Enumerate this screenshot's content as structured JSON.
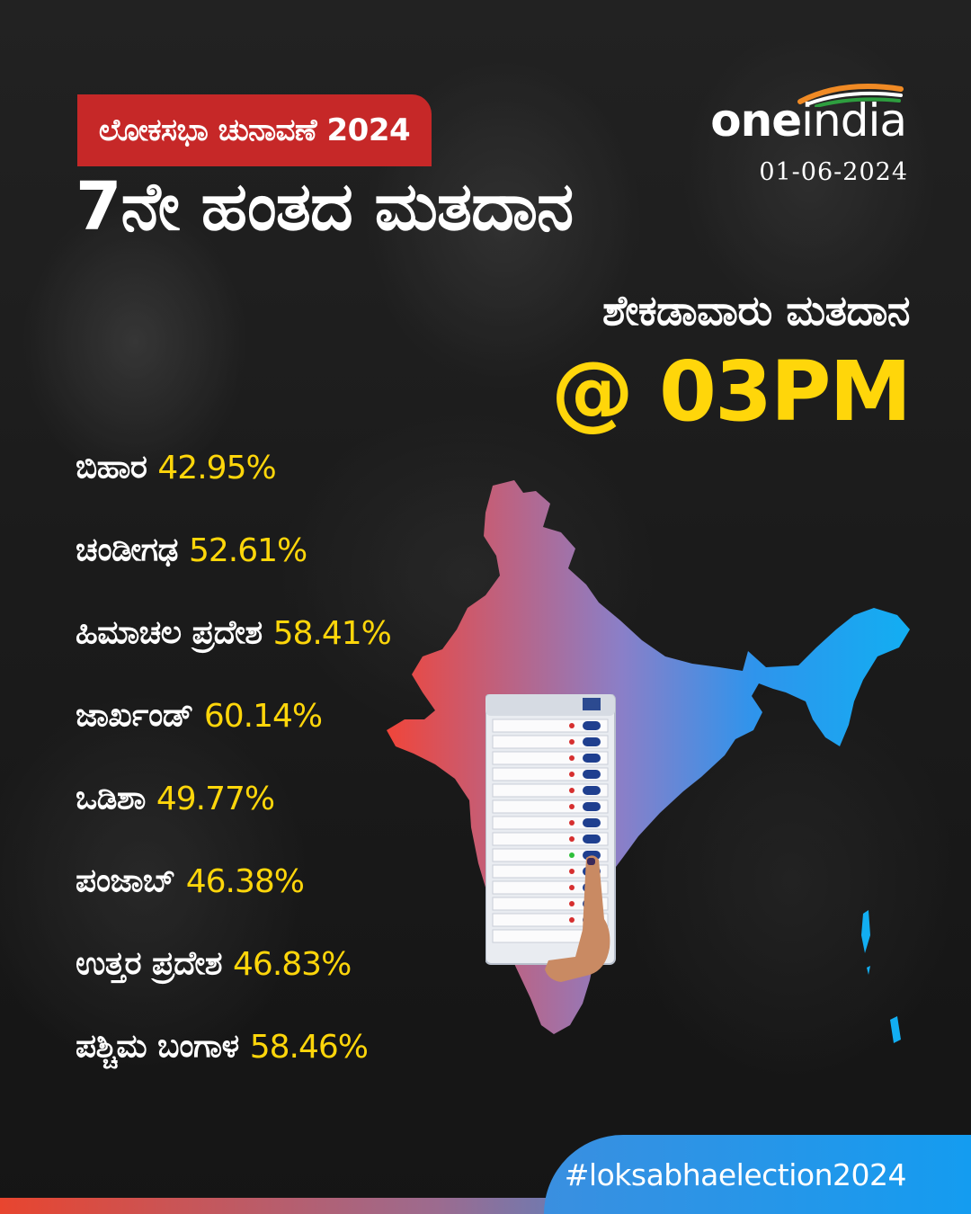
{
  "header": {
    "tag": "ಲೋಕಸಭಾ ಚುನಾವಣೆ 2024",
    "title": "7ನೇ ಹಂತದ ಮತದಾನ"
  },
  "brand": {
    "logo_bold": "one",
    "logo_light": "india",
    "date": "01-06-2024"
  },
  "turnout": {
    "subtitle": "ಶೇಕಡಾವಾರು ಮತದಾನ",
    "time": "@ 03PM",
    "states": [
      {
        "name": "ಬಿಹಾರ",
        "value": "42.95%"
      },
      {
        "name": "ಚಂಡೀಗಢ",
        "value": "52.61%"
      },
      {
        "name": "ಹಿಮಾಚಲ ಪ್ರದೇಶ",
        "value": "58.41%"
      },
      {
        "name": "ಜಾರ್ಖಂಡ್",
        "value": "60.14%"
      },
      {
        "name": "ಒಡಿಶಾ",
        "value": "49.77%"
      },
      {
        "name": "ಪಂಜಾಬ್",
        "value": "46.38%"
      },
      {
        "name": "ಉತ್ತರ ಪ್ರದೇಶ",
        "value": "46.83%"
      },
      {
        "name": "ಪಶ್ಚಿಮ ಬಂಗಾಳ",
        "value": "58.46%"
      }
    ]
  },
  "footer": {
    "hashtag": "#loksabhaelection2024"
  },
  "colors": {
    "accent_red": "#c62828",
    "highlight_yellow": "#ffd60a",
    "map_gradient_start": "#f0453a",
    "map_gradient_end": "#12aef2",
    "hashtag_blue": "#149cf0"
  },
  "icons": {
    "map": "india-map-icon",
    "voting_machine": "evm-icon",
    "logo_swoosh": "tricolor-swoosh-icon"
  }
}
